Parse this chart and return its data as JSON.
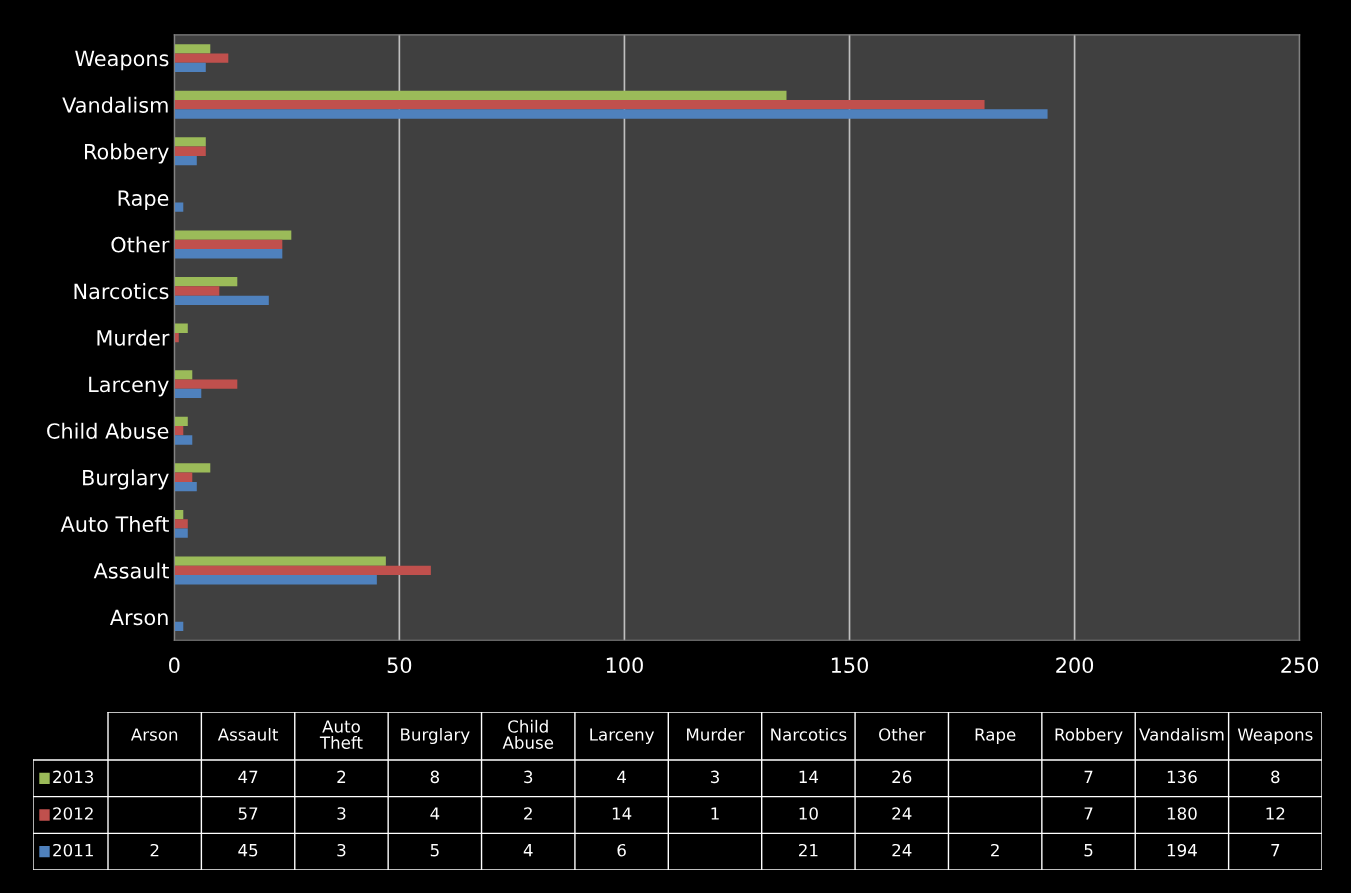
{
  "chart_data": [
    {
      "type": "bar",
      "orientation": "horizontal",
      "categories": [
        "Weapons",
        "Vandalism",
        "Robbery",
        "Rape",
        "Other",
        "Narcotics",
        "Murder",
        "Larceny",
        "Child Abuse",
        "Burglary",
        "Auto Theft",
        "Assault",
        "Arson"
      ],
      "series": [
        {
          "name": "2013",
          "color": "#9bbb59",
          "values": [
            8,
            136,
            7,
            null,
            26,
            14,
            3,
            4,
            3,
            8,
            2,
            47,
            null
          ]
        },
        {
          "name": "2012",
          "color": "#c0504d",
          "values": [
            12,
            180,
            7,
            null,
            24,
            10,
            1,
            14,
            2,
            4,
            3,
            57,
            null
          ]
        },
        {
          "name": "2011",
          "color": "#4f81bd",
          "values": [
            7,
            194,
            5,
            2,
            24,
            21,
            null,
            6,
            4,
            5,
            3,
            45,
            2
          ]
        }
      ],
      "xlim": [
        0,
        250
      ],
      "xticks": [
        0,
        50,
        100,
        150,
        200,
        250
      ],
      "grid": "x",
      "legend": "bottom"
    },
    {
      "type": "other",
      "categories": [
        "Arson",
        "Assault",
        "Auto Theft",
        "Burglary",
        "Child Abuse",
        "Larceny",
        "Murder",
        "Narcotics",
        "Other",
        "Rape",
        "Robbery",
        "Vandalism",
        "Weapons"
      ],
      "series": [
        {
          "values": [
            null,
            47,
            2,
            8,
            3,
            4,
            3,
            14,
            26,
            null,
            7,
            136,
            8
          ]
        },
        {
          "values": [
            null,
            57,
            3,
            4,
            2,
            14,
            1,
            10,
            24,
            null,
            7,
            180,
            12
          ]
        },
        {
          "values": [
            2,
            45,
            3,
            5,
            4,
            6,
            null,
            21,
            24,
            2,
            5,
            194,
            7
          ]
        }
      ],
      "data_labels": true
    }
  ]
}
